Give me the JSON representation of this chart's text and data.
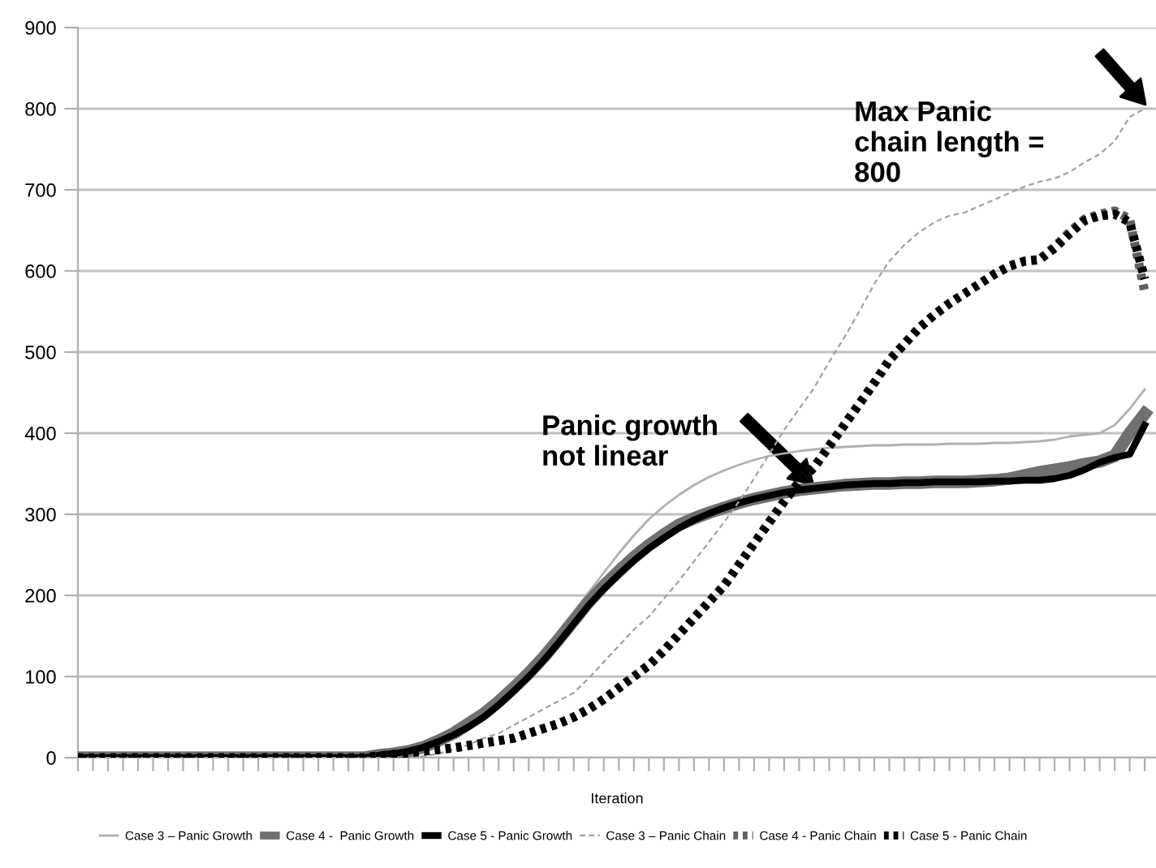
{
  "chart_data": {
    "type": "line",
    "xlabel": "Iteration",
    "categories": [
      null,
      null,
      null,
      null,
      null,
      null,
      null,
      null,
      null,
      null,
      null,
      null,
      null,
      null,
      null,
      null,
      null,
      null,
      null,
      null,
      null,
      null,
      null,
      null,
      null,
      null,
      null,
      null,
      null,
      null,
      null,
      null,
      null,
      null,
      null,
      null,
      null,
      null,
      null,
      null,
      null,
      null,
      null,
      null,
      null,
      null,
      null,
      null,
      null,
      null,
      null,
      null,
      null,
      null,
      null,
      null,
      null,
      null,
      null,
      null,
      null,
      null,
      null,
      null,
      null,
      null,
      null,
      null,
      null,
      null,
      null,
      null
    ],
    "ylim": [
      0,
      900
    ],
    "yticks": [
      0,
      100,
      200,
      300,
      400,
      500,
      600,
      700,
      800,
      900
    ],
    "grid": "y",
    "legend": "bottom",
    "marker": "none",
    "series": [
      {
        "name": "Case 3 – Panic Growth",
        "color": "#b0b0b0",
        "line_style": "solid",
        "values": [
          0,
          0,
          0,
          0,
          0,
          0,
          0,
          0,
          0,
          0,
          0,
          0,
          0,
          0,
          0,
          0,
          0,
          0,
          0,
          0,
          3,
          5,
          9,
          14,
          21,
          30,
          40,
          55,
          70,
          90,
          110,
          132,
          156,
          180,
          204,
          228,
          252,
          274,
          294,
          310,
          324,
          336,
          346,
          354,
          361,
          367,
          372,
          375,
          378,
          380,
          382,
          383,
          384,
          385,
          385,
          386,
          386,
          386,
          387,
          387,
          387,
          388,
          388,
          389,
          390,
          392,
          396,
          398,
          400,
          410,
          430,
          454
        ]
      },
      {
        "name": "Case 4 -  Panic Growth",
        "color": "#707070",
        "line_style": "solid",
        "values": [
          0,
          0,
          0,
          0,
          0,
          0,
          0,
          0,
          0,
          0,
          0,
          0,
          0,
          0,
          0,
          0,
          0,
          0,
          0,
          0,
          3,
          5,
          8,
          13,
          21,
          30,
          42,
          54,
          69,
          86,
          104,
          124,
          146,
          169,
          192,
          212,
          230,
          247,
          262,
          275,
          287,
          295,
          302,
          308,
          314,
          319,
          323,
          327,
          330,
          332,
          334,
          336,
          337,
          338,
          338,
          339,
          339,
          340,
          340,
          340,
          341,
          342,
          344,
          348,
          352,
          355,
          358,
          362,
          365,
          372,
          400,
          424
        ]
      },
      {
        "name": "Case 5 - Panic Growth",
        "color": "#000000",
        "line_style": "solid",
        "values": [
          0,
          0,
          0,
          0,
          0,
          0,
          0,
          0,
          0,
          0,
          0,
          0,
          0,
          0,
          0,
          0,
          0,
          0,
          0,
          0,
          3,
          5,
          8,
          13,
          20,
          28,
          38,
          50,
          65,
          82,
          100,
          120,
          142,
          165,
          188,
          208,
          226,
          243,
          258,
          271,
          283,
          293,
          301,
          308,
          314,
          319,
          323,
          327,
          330,
          332,
          334,
          336,
          337,
          338,
          338,
          339,
          339,
          340,
          340,
          340,
          340,
          341,
          341,
          342,
          342,
          344,
          348,
          355,
          364,
          370,
          374,
          410
        ]
      },
      {
        "name": "Case 3 – Panic Chain",
        "color": "#a0a0a0",
        "line_style": "dashed",
        "values": [
          0,
          0,
          0,
          0,
          0,
          0,
          0,
          0,
          0,
          0,
          0,
          0,
          0,
          0,
          0,
          0,
          0,
          0,
          0,
          0,
          0,
          0,
          0,
          2,
          5,
          10,
          16,
          24,
          30,
          40,
          50,
          60,
          70,
          80,
          98,
          118,
          138,
          158,
          174,
          196,
          218,
          242,
          266,
          290,
          316,
          344,
          374,
          404,
          430,
          456,
          488,
          518,
          550,
          584,
          612,
          632,
          648,
          660,
          668,
          672,
          680,
          688,
          696,
          704,
          710,
          714,
          722,
          734,
          744,
          760,
          790,
          800
        ]
      },
      {
        "name": "Case 4 - Panic Chain",
        "color": "#606060",
        "line_style": "dotted",
        "values": [
          0,
          0,
          0,
          0,
          0,
          0,
          0,
          0,
          0,
          0,
          0,
          0,
          0,
          0,
          0,
          0,
          0,
          0,
          0,
          0,
          2,
          4,
          6,
          8,
          10,
          12,
          15,
          18,
          21,
          24,
          30,
          36,
          42,
          50,
          60,
          72,
          86,
          100,
          114,
          132,
          152,
          172,
          192,
          212,
          238,
          264,
          290,
          316,
          340,
          358,
          384,
          410,
          436,
          462,
          490,
          510,
          530,
          546,
          560,
          572,
          584,
          596,
          606,
          612,
          614,
          630,
          648,
          664,
          670,
          674,
          664,
          574
        ]
      },
      {
        "name": "Case 5 - Panic Chain",
        "color": "#000000",
        "line_style": "dotted",
        "values": [
          0,
          0,
          0,
          0,
          0,
          0,
          0,
          0,
          0,
          0,
          0,
          0,
          0,
          0,
          0,
          0,
          0,
          0,
          0,
          0,
          2,
          4,
          6,
          8,
          10,
          12,
          15,
          18,
          21,
          24,
          30,
          36,
          42,
          50,
          60,
          72,
          86,
          100,
          114,
          132,
          152,
          172,
          192,
          212,
          238,
          264,
          290,
          316,
          340,
          358,
          384,
          410,
          436,
          462,
          490,
          510,
          530,
          546,
          560,
          572,
          584,
          596,
          606,
          612,
          614,
          628,
          646,
          662,
          668,
          670,
          660,
          590
        ]
      }
    ],
    "annotations": [
      "Panic growth\nnot linear",
      "Max Panic\nchain length =\n800"
    ]
  }
}
